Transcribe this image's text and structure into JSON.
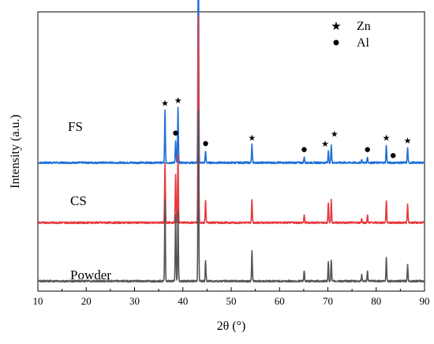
{
  "chart_data": {
    "type": "line",
    "xlabel": "2θ (°)",
    "ylabel": "Intensity (a.u.)",
    "xlim": [
      10,
      90
    ],
    "x_ticks": [
      10,
      20,
      30,
      40,
      50,
      60,
      70,
      80,
      90
    ],
    "y_tick_labels_shown": false,
    "grid": false,
    "legend": {
      "placement": "top-right",
      "entries": [
        {
          "marker": "star",
          "label": "Zn"
        },
        {
          "marker": "circle",
          "label": "Al"
        }
      ]
    },
    "marker_positions": {
      "zn_star_two_theta": [
        36.3,
        39.0,
        43.2,
        54.3,
        70.1,
        70.7,
        82.1,
        86.5
      ],
      "al_circle_two_theta": [
        38.5,
        44.7,
        65.1,
        78.2,
        83.5
      ]
    },
    "series": [
      {
        "name": "FS",
        "color": "#1f6fd6",
        "baseline": 0.82,
        "peaks": [
          {
            "x": 36.3,
            "h": 0.35
          },
          {
            "x": 38.5,
            "h": 0.15
          },
          {
            "x": 39.0,
            "h": 0.37
          },
          {
            "x": 43.2,
            "h": 1.55
          },
          {
            "x": 44.7,
            "h": 0.08
          },
          {
            "x": 54.3,
            "h": 0.12
          },
          {
            "x": 65.1,
            "h": 0.04
          },
          {
            "x": 70.1,
            "h": 0.08
          },
          {
            "x": 70.7,
            "h": 0.12
          },
          {
            "x": 77.0,
            "h": 0.02
          },
          {
            "x": 78.2,
            "h": 0.04
          },
          {
            "x": 82.1,
            "h": 0.12
          },
          {
            "x": 86.5,
            "h": 0.1
          }
        ]
      },
      {
        "name": "CS",
        "color": "#e8383d",
        "baseline": 0.42,
        "peaks": [
          {
            "x": 36.3,
            "h": 0.4
          },
          {
            "x": 38.5,
            "h": 0.32
          },
          {
            "x": 39.0,
            "h": 0.46
          },
          {
            "x": 43.2,
            "h": 1.38
          },
          {
            "x": 44.7,
            "h": 0.15
          },
          {
            "x": 54.3,
            "h": 0.15
          },
          {
            "x": 65.1,
            "h": 0.05
          },
          {
            "x": 70.1,
            "h": 0.13
          },
          {
            "x": 70.7,
            "h": 0.15
          },
          {
            "x": 77.0,
            "h": 0.03
          },
          {
            "x": 78.2,
            "h": 0.05
          },
          {
            "x": 82.1,
            "h": 0.15
          },
          {
            "x": 86.5,
            "h": 0.12
          }
        ]
      },
      {
        "name": "Powder",
        "color": "#555555",
        "baseline": 0.03,
        "peaks": [
          {
            "x": 36.3,
            "h": 0.55
          },
          {
            "x": 38.5,
            "h": 0.44
          },
          {
            "x": 39.0,
            "h": 0.47
          },
          {
            "x": 43.2,
            "h": 1.13
          },
          {
            "x": 44.7,
            "h": 0.14
          },
          {
            "x": 54.3,
            "h": 0.2
          },
          {
            "x": 65.1,
            "h": 0.07
          },
          {
            "x": 70.1,
            "h": 0.13
          },
          {
            "x": 70.7,
            "h": 0.14
          },
          {
            "x": 77.0,
            "h": 0.04
          },
          {
            "x": 78.2,
            "h": 0.07
          },
          {
            "x": 82.1,
            "h": 0.16
          },
          {
            "x": 86.5,
            "h": 0.11
          }
        ]
      }
    ]
  }
}
